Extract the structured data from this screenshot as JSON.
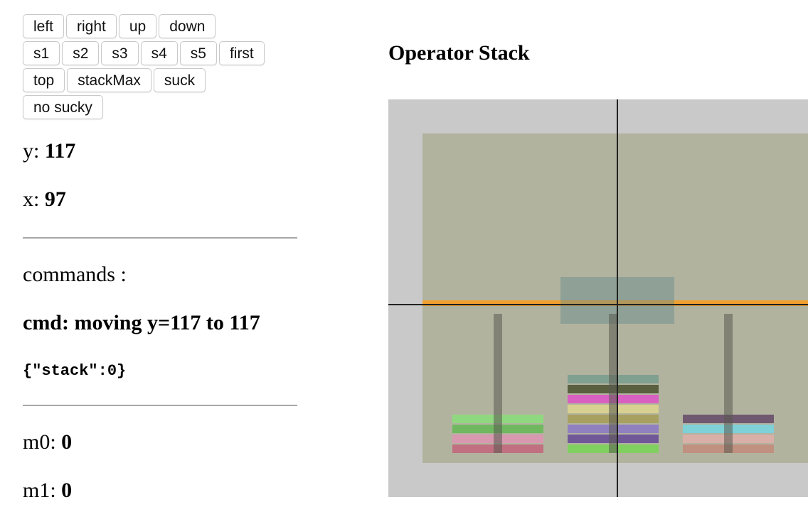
{
  "buttons": {
    "row1": [
      "left",
      "right",
      "up",
      "down"
    ],
    "row2": [
      "s1",
      "s2",
      "s3",
      "s4",
      "s5",
      "first"
    ],
    "row3": [
      "top",
      "stackMax",
      "suck"
    ],
    "row4": [
      "no sucky"
    ]
  },
  "status": {
    "y_label": "y: ",
    "y_value": "117",
    "x_label": "x: ",
    "x_value": "97"
  },
  "commands": {
    "label": "commands :",
    "cmd_text": "cmd: moving y=117 to 117",
    "json_text": "{\"stack\":0}"
  },
  "motors": {
    "m0_label": "m0: ",
    "m0_value": "0",
    "m1_label": "m1: ",
    "m1_value": "0"
  },
  "panel": {
    "title": "Operator Stack"
  },
  "colors": {
    "background_outer": "#c9c9c9",
    "background_inner": "#b2b39f",
    "crosshair": "#222222",
    "guide_line": "#f0a030",
    "highlight": "#648c8c"
  },
  "stacks": [
    {
      "disks": [
        "#c07080",
        "#d898b0",
        "#70b860",
        "#90d880"
      ]
    },
    {
      "disks": [
        "#80d060",
        "#705898",
        "#9080c0",
        "#a8a060",
        "#d8d090",
        "#d860c0",
        "#586040",
        "#80a090"
      ]
    },
    {
      "disks": [
        "#c09080",
        "#d8b0a8",
        "#80d0d8",
        "#705870"
      ]
    }
  ]
}
